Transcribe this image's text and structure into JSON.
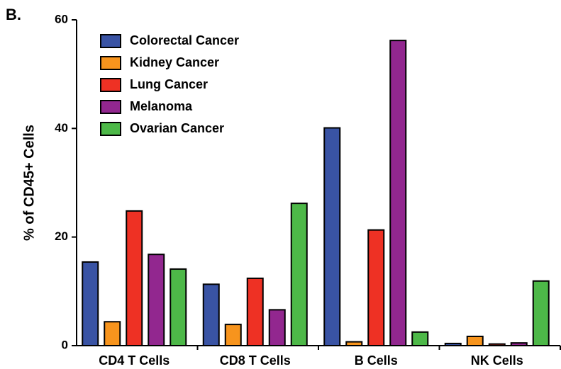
{
  "chart_data": {
    "type": "bar",
    "panel_label": "B.",
    "y_label": "% of CD45+ Cells",
    "categories": [
      "CD4 T Cells",
      "CD8 T Cells",
      "B Cells",
      "NK Cells"
    ],
    "series": [
      {
        "name": "Colorectal Cancer",
        "color": "#3953a4",
        "values": [
          15.4,
          11.3,
          40.1,
          0.4
        ]
      },
      {
        "name": "Kidney Cancer",
        "color": "#f7941d",
        "values": [
          4.4,
          3.9,
          0.7,
          1.7
        ]
      },
      {
        "name": "Lung Cancer",
        "color": "#ee3124",
        "values": [
          24.8,
          12.4,
          21.3,
          0.3
        ]
      },
      {
        "name": "Melanoma",
        "color": "#92278f",
        "values": [
          16.8,
          6.6,
          56.2,
          0.5
        ]
      },
      {
        "name": "Ovarian Cancer",
        "color": "#4db848",
        "values": [
          14.1,
          26.2,
          2.5,
          11.9
        ]
      }
    ],
    "ylim": [
      0,
      60
    ],
    "yticks": [
      0,
      20,
      40,
      60
    ],
    "legend": "upper-left"
  }
}
